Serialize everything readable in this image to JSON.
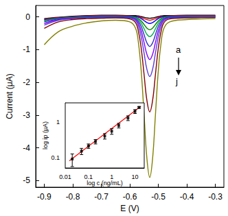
{
  "chart_data": [
    {
      "type": "line",
      "x_label": "E (V)",
      "y_label": "Current (μA)",
      "grid": false,
      "xlim": [
        -0.93,
        -0.27
      ],
      "xticks": [
        -0.9,
        -0.8,
        -0.7,
        -0.6,
        -0.5,
        -0.4,
        -0.3
      ],
      "ylim": [
        -5.2,
        0.35
      ],
      "yticks": [
        -5,
        -4,
        -3,
        -2,
        -1,
        0
      ],
      "x": [
        -0.9,
        -0.85,
        -0.8,
        -0.75,
        -0.7,
        -0.65,
        -0.6,
        -0.58,
        -0.57,
        -0.56,
        -0.55,
        -0.54,
        -0.53,
        -0.52,
        -0.51,
        -0.5,
        -0.49,
        -0.48,
        -0.46,
        -0.4,
        -0.35,
        -0.3
      ],
      "series": [
        {
          "color": "#000000",
          "values": [
            -0.05,
            -0.01,
            0.02,
            0.04,
            0.05,
            0.05,
            0.04,
            0.04,
            0.03,
            0.01,
            -0.01,
            -0.03,
            -0.04,
            -0.03,
            -0.01,
            0.01,
            0.03,
            0.04,
            0.04,
            0.05,
            0.05,
            0.05
          ]
        },
        {
          "color": "#ff0000",
          "values": [
            -0.06,
            -0.02,
            0.01,
            0.03,
            0.04,
            0.04,
            0.03,
            0.02,
            0.01,
            -0.02,
            -0.05,
            -0.08,
            -0.1,
            -0.08,
            -0.05,
            -0.02,
            0.01,
            0.02,
            0.03,
            0.04,
            0.04,
            0.04
          ]
        },
        {
          "color": "#0000ff",
          "values": [
            -0.08,
            -0.03,
            0,
            0.02,
            0.03,
            0.03,
            0.02,
            0.01,
            -0.01,
            -0.05,
            -0.11,
            -0.17,
            -0.2,
            -0.17,
            -0.11,
            -0.05,
            -0.01,
            0.01,
            0.02,
            0.03,
            0.03,
            0.03
          ]
        },
        {
          "color": "#008000",
          "values": [
            -0.1,
            -0.04,
            -0.01,
            0.01,
            0.02,
            0.02,
            0.01,
            -0.01,
            -0.05,
            -0.12,
            -0.23,
            -0.34,
            -0.39,
            -0.34,
            -0.23,
            -0.12,
            -0.05,
            -0.01,
            0.01,
            0.02,
            0.02,
            0.02
          ]
        },
        {
          "color": "#00b050",
          "values": [
            -0.12,
            -0.05,
            -0.02,
            0,
            0.01,
            0.01,
            0,
            -0.03,
            -0.08,
            -0.19,
            -0.36,
            -0.53,
            -0.6,
            -0.53,
            -0.36,
            -0.19,
            -0.08,
            -0.03,
            0,
            0.01,
            0.01,
            0.01
          ]
        },
        {
          "color": "#3030c0",
          "values": [
            -0.15,
            -0.06,
            -0.03,
            -0.01,
            0,
            0,
            -0.01,
            -0.05,
            -0.13,
            -0.29,
            -0.54,
            -0.79,
            -0.9,
            -0.79,
            -0.54,
            -0.29,
            -0.13,
            -0.05,
            -0.01,
            0,
            0,
            0
          ]
        },
        {
          "color": "#8000ff",
          "values": [
            -0.2,
            -0.08,
            -0.04,
            -0.02,
            -0.01,
            -0.01,
            -0.02,
            -0.08,
            -0.19,
            -0.42,
            -0.78,
            -1.14,
            -1.3,
            -1.14,
            -0.78,
            -0.42,
            -0.19,
            -0.08,
            -0.02,
            -0.01,
            0,
            0
          ]
        },
        {
          "color": "#5a3cd8",
          "values": [
            -0.25,
            -0.1,
            -0.05,
            -0.03,
            -0.02,
            -0.02,
            -0.04,
            -0.11,
            -0.27,
            -0.6,
            -1.1,
            -1.6,
            -1.82,
            -1.6,
            -1.1,
            -0.6,
            -0.27,
            -0.11,
            -0.04,
            -0.02,
            -0.01,
            -0.01
          ]
        },
        {
          "color": "#800000",
          "values": [
            -0.35,
            -0.15,
            -0.08,
            -0.05,
            -0.04,
            -0.03,
            -0.06,
            -0.17,
            -0.43,
            -0.95,
            -1.75,
            -2.55,
            -2.9,
            -2.55,
            -1.75,
            -0.95,
            -0.43,
            -0.17,
            -0.06,
            -0.03,
            -0.02,
            -0.02
          ]
        },
        {
          "color": "#808000",
          "values": [
            -0.85,
            -0.45,
            -0.28,
            -0.18,
            -0.12,
            -0.1,
            -0.15,
            -0.34,
            -0.77,
            -1.64,
            -2.98,
            -4.32,
            -4.9,
            -4.32,
            -2.98,
            -1.64,
            -0.77,
            -0.34,
            -0.15,
            -0.08,
            -0.06,
            -0.05
          ]
        }
      ],
      "annotation": {
        "from": "a",
        "to": "j"
      }
    },
    {
      "type": "scatter",
      "x_label": "log c (ng/mL)",
      "y_label": "log ip (μA)",
      "log": true,
      "grid": false,
      "xlim": [
        0.01,
        25
      ],
      "xticks": [
        0.01,
        0.1,
        1,
        10
      ],
      "ylim": [
        0.05,
        3.5
      ],
      "yticks": [
        0.1,
        1
      ],
      "x": [
        0.02,
        0.05,
        0.1,
        0.2,
        0.5,
        1,
        2,
        5,
        10,
        15
      ],
      "values": [
        0.09,
        0.15,
        0.21,
        0.28,
        0.4,
        0.55,
        0.8,
        1.3,
        2.0,
        2.6
      ],
      "errors": [
        0.035,
        0.03,
        0.03,
        0.04,
        0.07,
        0.1,
        0.12,
        0.2,
        0.25,
        0.15
      ],
      "color": "#000000",
      "marker": "square",
      "fit": {
        "x": [
          0.015,
          18
        ],
        "values": [
          0.08,
          2.8
        ],
        "color": "#ff0000"
      }
    }
  ]
}
